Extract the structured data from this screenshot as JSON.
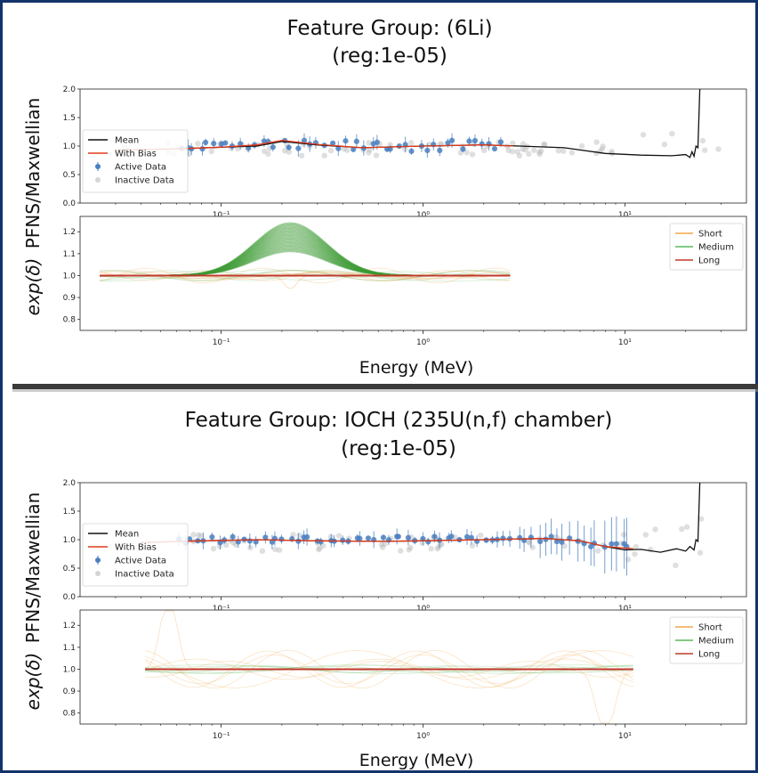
{
  "chart_data": [
    {
      "type": "line",
      "title": "Feature Group: (6Li)",
      "subtitle": "(reg:1e-05)",
      "ylabel": "PFNS/Maxwellian",
      "ylabel_prefix": "exp(δ)",
      "xlabel": "Energy (MeV)",
      "x_scale": "log",
      "xlim": [
        0.02,
        40
      ],
      "x_ticks": [
        {
          "value": 0.1,
          "label": "10⁻¹"
        },
        {
          "value": 1,
          "label": "10⁰"
        },
        {
          "value": 10,
          "label": "10¹"
        }
      ],
      "top_panel": {
        "ylim": [
          0,
          2
        ],
        "y_ticks": [
          "0.0",
          "0.5",
          "1.0",
          "1.5",
          "2.0"
        ],
        "legend_position": "left",
        "legend": [
          "Mean",
          "With Bias",
          "Active Data",
          "Inactive Data"
        ],
        "mean": {
          "x": [
            0.03,
            0.06,
            0.1,
            0.15,
            0.2,
            0.3,
            0.5,
            1,
            2,
            3,
            5,
            8,
            12,
            17,
            20,
            21,
            21.5,
            22,
            22.5,
            23,
            23.5
          ],
          "y": [
            0.93,
            0.95,
            0.98,
            1.0,
            1.08,
            1.02,
            0.97,
            1.0,
            1.02,
            1.0,
            0.97,
            0.87,
            0.84,
            0.83,
            0.85,
            0.8,
            0.9,
            0.82,
            1.0,
            0.97,
            2.0
          ]
        },
        "with_bias": {
          "x": [
            0.03,
            0.06,
            0.1,
            0.15,
            0.2,
            0.3,
            0.5,
            1,
            2,
            2.8
          ],
          "y": [
            0.93,
            0.95,
            0.98,
            1.02,
            1.1,
            1.03,
            0.97,
            1.0,
            1.02,
            1.0
          ]
        },
        "active_data": {
          "x_range": [
            0.06,
            2.6
          ],
          "y_center": 1.0,
          "spread": 0.1,
          "count": 48
        },
        "inactive_data": {
          "x_range": [
            0.03,
            30
          ],
          "y_center": 0.95,
          "spread": 0.2,
          "count": 85
        }
      },
      "bottom_panel": {
        "ylim": [
          0.75,
          1.27
        ],
        "y_ticks": [
          "0.8",
          "0.9",
          "1.0",
          "1.1",
          "1.2"
        ],
        "legend_position": "top-right",
        "legend": [
          "Short",
          "Medium",
          "Long"
        ],
        "x_extent": [
          0.025,
          2.7
        ],
        "bump": {
          "center": 0.22,
          "width_decades": 0.18,
          "min_height": 0.11,
          "max_height": 0.24
        }
      }
    },
    {
      "type": "line",
      "title": "Feature Group: IOCH (235U(n,f) chamber)",
      "subtitle": "(reg:1e-05)",
      "ylabel": "PFNS/Maxwellian",
      "ylabel_prefix": "exp(δ)",
      "xlabel": "Energy (MeV)",
      "x_scale": "log",
      "xlim": [
        0.02,
        40
      ],
      "x_ticks": [
        {
          "value": 0.1,
          "label": "10⁻¹"
        },
        {
          "value": 1,
          "label": "10⁰"
        },
        {
          "value": 10,
          "label": "10¹"
        }
      ],
      "top_panel": {
        "ylim": [
          0,
          2
        ],
        "y_ticks": [
          "0.0",
          "0.5",
          "1.0",
          "1.5",
          "2.0"
        ],
        "legend_position": "left",
        "legend": [
          "Mean",
          "With Bias",
          "Active Data",
          "Inactive Data"
        ],
        "mean": {
          "x": [
            0.04,
            0.08,
            0.15,
            0.3,
            0.6,
            1,
            2,
            4,
            6,
            8,
            10,
            12,
            15,
            18,
            20,
            21,
            22,
            22.5,
            23,
            23.5
          ],
          "y": [
            0.95,
            0.98,
            1.0,
            0.98,
            0.97,
            0.98,
            1.0,
            1.02,
            0.98,
            0.88,
            0.82,
            0.83,
            0.78,
            0.84,
            0.8,
            0.88,
            0.82,
            1.0,
            0.97,
            2.0
          ]
        },
        "with_bias": {
          "x": [
            0.04,
            0.08,
            0.15,
            0.3,
            0.6,
            1,
            2,
            4,
            6,
            8,
            11
          ],
          "y": [
            0.95,
            0.98,
            1.0,
            0.98,
            0.97,
            0.98,
            1.0,
            1.02,
            0.98,
            0.88,
            0.84
          ]
        },
        "active_data": {
          "x_range": [
            0.06,
            11
          ],
          "y_center": 1.0,
          "spread": 0.06,
          "count": 70
        },
        "inactive_data": {
          "x_range": [
            0.06,
            30
          ],
          "y_center": 0.95,
          "spread": 0.25,
          "count": 70
        }
      },
      "bottom_panel": {
        "ylim": [
          0.75,
          1.27
        ],
        "y_ticks": [
          "0.8",
          "0.9",
          "1.0",
          "1.1",
          "1.2"
        ],
        "legend_position": "top-right",
        "legend": [
          "Short",
          "Medium",
          "Long"
        ],
        "x_extent": [
          0.042,
          11
        ],
        "bump": null
      }
    }
  ],
  "colors": {
    "mean": "#111111",
    "with_bias": "#e23a1c",
    "active": "#4a7fc0",
    "inactive": "#b9b9b9",
    "short": "#f3a64a",
    "medium": "#5cb85c",
    "long": "#c0392b",
    "bump": "#3f9c35",
    "frame_border": "#14336b",
    "divider": "#3a3a3a"
  }
}
